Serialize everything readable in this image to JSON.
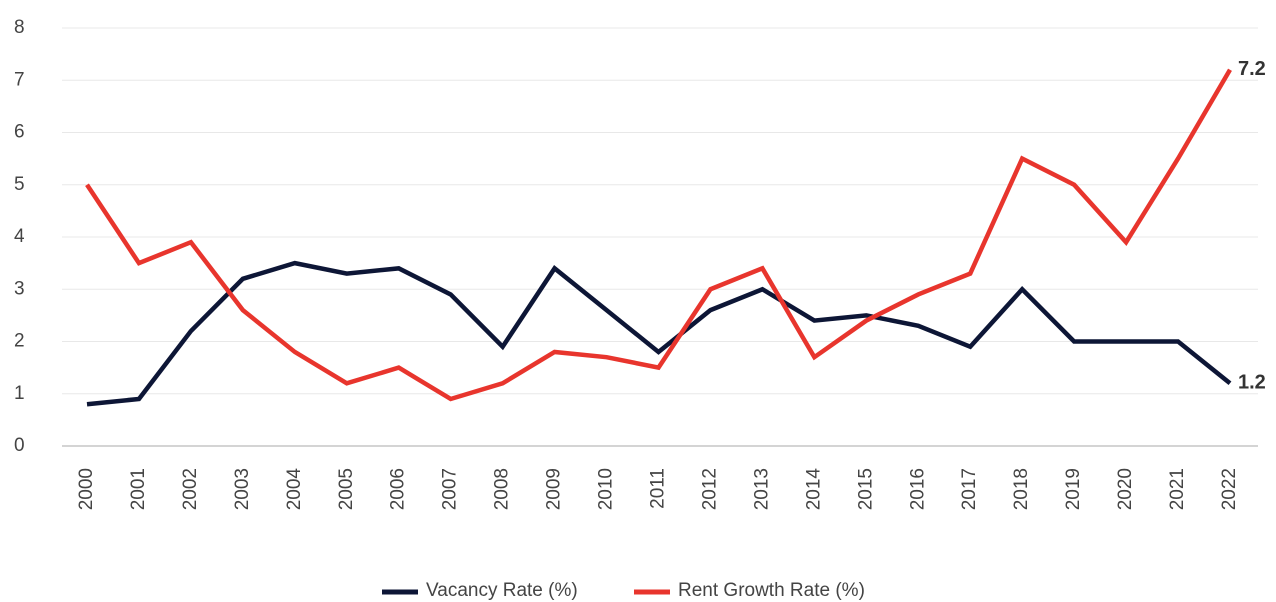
{
  "chart_data": {
    "type": "line",
    "x": [
      2000,
      2001,
      2002,
      2003,
      2004,
      2005,
      2006,
      2007,
      2008,
      2009,
      2010,
      2011,
      2012,
      2013,
      2014,
      2015,
      2016,
      2017,
      2018,
      2019,
      2020,
      2021,
      2022
    ],
    "series": [
      {
        "name": "Vacancy Rate (%)",
        "color": "#0d1636",
        "values": [
          0.8,
          0.9,
          2.2,
          3.2,
          3.5,
          3.3,
          3.4,
          2.9,
          1.9,
          3.4,
          2.6,
          1.8,
          2.6,
          3.0,
          2.4,
          2.5,
          2.3,
          1.9,
          3.0,
          2.0,
          2.0,
          2.0,
          1.2
        ]
      },
      {
        "name": "Rent Growth Rate (%)",
        "color": "#e8352d",
        "values": [
          5.0,
          3.5,
          3.9,
          2.6,
          1.8,
          1.2,
          1.5,
          0.9,
          1.2,
          1.8,
          1.7,
          1.5,
          3.0,
          3.4,
          1.7,
          2.4,
          2.9,
          3.3,
          5.5,
          5.0,
          3.9,
          5.5,
          7.2
        ]
      }
    ],
    "ylim": [
      0,
      8
    ],
    "yticks": [
      0,
      1,
      2,
      3,
      4,
      5,
      6,
      7,
      8
    ],
    "grid": true,
    "legend": "bottom"
  }
}
